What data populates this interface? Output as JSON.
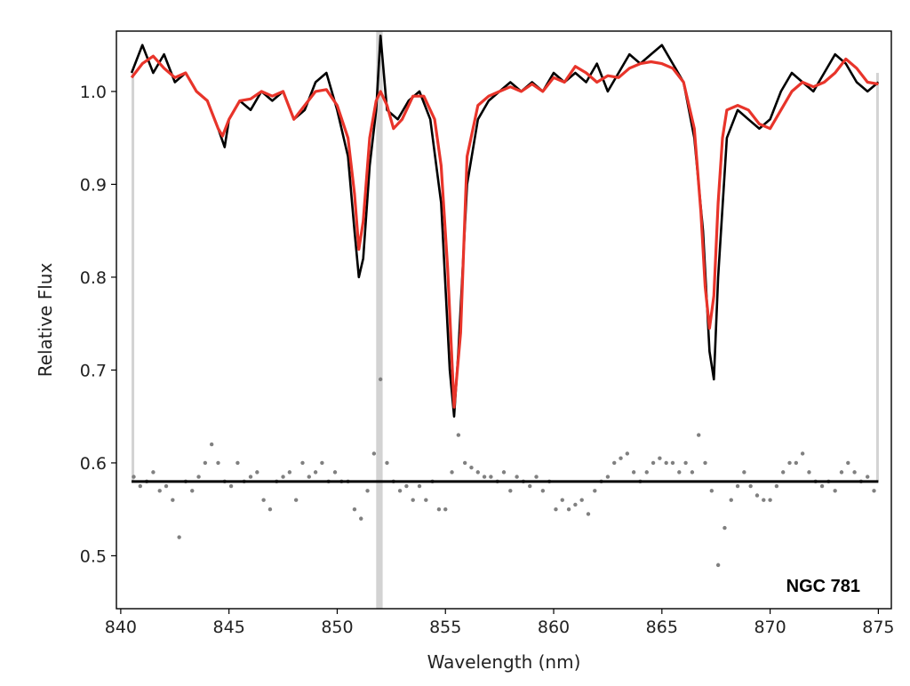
{
  "chart_data": {
    "type": "line",
    "xlabel": "Wavelength (nm)",
    "ylabel": "Relative Flux",
    "xlim": [
      839.8,
      875.6
    ],
    "ylim": [
      0.443,
      1.065
    ],
    "x_ticks": [
      840,
      845,
      850,
      855,
      860,
      865,
      870,
      875
    ],
    "y_ticks": [
      0.5,
      0.6,
      0.7,
      0.8,
      0.9,
      1.0
    ],
    "grid": false,
    "annotation": "NGC 781",
    "masked_regions": [
      {
        "x_start": 840.5,
        "x_end": 840.6,
        "y_start": 0.58,
        "y_end": 1.02,
        "color": "#d3d3d3"
      },
      {
        "x_start": 851.8,
        "x_end": 852.1,
        "y_start": 0.443,
        "y_end": 1.065,
        "color": "#d3d3d3"
      },
      {
        "x_start": 874.9,
        "x_end": 875.0,
        "y_start": 0.58,
        "y_end": 1.02,
        "color": "#d3d3d3"
      }
    ],
    "residual_baseline": {
      "y": 0.58,
      "x_start": 840.5,
      "x_end": 875.0,
      "color": "#000000"
    },
    "series": [
      {
        "role": "observed",
        "color": "#000000",
        "x": [
          840.5,
          841.0,
          841.5,
          842.0,
          842.5,
          843.0,
          843.5,
          844.0,
          844.5,
          844.8,
          845.0,
          845.5,
          846.0,
          846.5,
          847.0,
          847.5,
          848.0,
          848.5,
          849.0,
          849.5,
          850.0,
          850.5,
          850.8,
          851.0,
          851.2,
          851.5,
          851.8,
          852.0,
          852.3,
          852.8,
          853.3,
          853.8,
          854.3,
          854.8,
          855.2,
          855.4,
          855.6,
          856.0,
          856.5,
          857.0,
          857.5,
          858.0,
          858.5,
          859.0,
          859.5,
          860.0,
          860.5,
          861.0,
          861.5,
          862.0,
          862.5,
          863.0,
          863.5,
          864.0,
          864.5,
          865.0,
          865.5,
          866.0,
          866.5,
          866.9,
          867.2,
          867.4,
          867.6,
          868.0,
          868.5,
          869.0,
          869.5,
          870.0,
          870.5,
          871.0,
          871.5,
          872.0,
          872.5,
          873.0,
          873.5,
          874.0,
          874.5,
          875.0
        ],
        "y": [
          1.02,
          1.05,
          1.02,
          1.04,
          1.01,
          1.02,
          1.0,
          0.99,
          0.96,
          0.94,
          0.97,
          0.99,
          0.98,
          1.0,
          0.99,
          1.0,
          0.97,
          0.98,
          1.01,
          1.02,
          0.98,
          0.93,
          0.85,
          0.8,
          0.82,
          0.92,
          0.98,
          1.06,
          0.98,
          0.97,
          0.99,
          1.0,
          0.97,
          0.88,
          0.7,
          0.65,
          0.72,
          0.9,
          0.97,
          0.99,
          1.0,
          1.01,
          1.0,
          1.01,
          1.0,
          1.02,
          1.01,
          1.02,
          1.01,
          1.03,
          1.0,
          1.02,
          1.04,
          1.03,
          1.04,
          1.05,
          1.03,
          1.01,
          0.95,
          0.85,
          0.72,
          0.69,
          0.8,
          0.95,
          0.98,
          0.97,
          0.96,
          0.97,
          1.0,
          1.02,
          1.01,
          1.0,
          1.02,
          1.04,
          1.03,
          1.01,
          1.0,
          1.01
        ]
      },
      {
        "role": "model",
        "color": "#e8342a",
        "x": [
          840.5,
          841.0,
          841.5,
          842.0,
          842.5,
          843.0,
          843.5,
          844.0,
          844.5,
          844.7,
          845.0,
          845.5,
          846.0,
          846.5,
          847.0,
          847.5,
          848.0,
          848.5,
          849.0,
          849.5,
          850.0,
          850.5,
          850.8,
          851.0,
          851.2,
          851.5,
          851.8,
          852.0,
          852.3,
          852.6,
          853.0,
          853.5,
          854.0,
          854.5,
          854.8,
          855.1,
          855.4,
          855.7,
          856.0,
          856.5,
          857.0,
          857.5,
          858.0,
          858.5,
          859.0,
          859.5,
          860.0,
          860.5,
          861.0,
          861.5,
          862.0,
          862.5,
          863.0,
          863.5,
          864.0,
          864.5,
          865.0,
          865.5,
          866.0,
          866.5,
          866.8,
          867.0,
          867.2,
          867.4,
          867.6,
          867.8,
          868.0,
          868.5,
          869.0,
          869.5,
          870.0,
          870.5,
          871.0,
          871.5,
          872.0,
          872.5,
          873.0,
          873.5,
          874.0,
          874.5,
          875.0
        ],
        "y": [
          1.015,
          1.03,
          1.038,
          1.025,
          1.015,
          1.02,
          1.0,
          0.99,
          0.96,
          0.952,
          0.97,
          0.99,
          0.992,
          1.0,
          0.995,
          1.0,
          0.97,
          0.985,
          1.0,
          1.002,
          0.985,
          0.95,
          0.89,
          0.83,
          0.86,
          0.95,
          0.99,
          1.0,
          0.985,
          0.96,
          0.97,
          0.995,
          0.995,
          0.97,
          0.92,
          0.81,
          0.66,
          0.74,
          0.93,
          0.985,
          0.995,
          1.0,
          1.005,
          1.0,
          1.008,
          1.0,
          1.015,
          1.01,
          1.027,
          1.02,
          1.01,
          1.017,
          1.015,
          1.025,
          1.03,
          1.032,
          1.03,
          1.025,
          1.01,
          0.96,
          0.87,
          0.79,
          0.745,
          0.78,
          0.88,
          0.95,
          0.98,
          0.985,
          0.98,
          0.965,
          0.96,
          0.98,
          1.0,
          1.01,
          1.005,
          1.01,
          1.02,
          1.035,
          1.025,
          1.01,
          1.008
        ]
      },
      {
        "role": "residuals",
        "color": "#808080",
        "x": [
          840.6,
          840.9,
          841.2,
          841.5,
          841.8,
          842.1,
          842.4,
          842.7,
          843.0,
          843.3,
          843.6,
          843.9,
          844.2,
          844.5,
          844.8,
          845.1,
          845.4,
          845.7,
          846.0,
          846.3,
          846.6,
          846.9,
          847.2,
          847.5,
          847.8,
          848.1,
          848.4,
          848.7,
          849.0,
          849.3,
          849.6,
          849.9,
          850.2,
          850.5,
          850.8,
          851.1,
          851.4,
          851.7,
          852.0,
          852.3,
          852.6,
          852.9,
          853.2,
          853.5,
          853.8,
          854.1,
          854.4,
          854.7,
          855.0,
          855.3,
          855.6,
          855.9,
          856.2,
          856.5,
          856.8,
          857.1,
          857.4,
          857.7,
          858.0,
          858.3,
          858.6,
          858.9,
          859.2,
          859.5,
          859.8,
          860.1,
          860.4,
          860.7,
          861.0,
          861.3,
          861.6,
          861.9,
          862.2,
          862.5,
          862.8,
          863.1,
          863.4,
          863.7,
          864.0,
          864.3,
          864.6,
          864.9,
          865.2,
          865.5,
          865.8,
          866.1,
          866.4,
          866.7,
          867.0,
          867.3,
          867.6,
          867.9,
          868.2,
          868.5,
          868.8,
          869.1,
          869.4,
          869.7,
          870.0,
          870.3,
          870.6,
          870.9,
          871.2,
          871.5,
          871.8,
          872.1,
          872.4,
          872.7,
          873.0,
          873.3,
          873.6,
          873.9,
          874.2,
          874.5,
          874.8
        ],
        "y": [
          0.585,
          0.575,
          0.58,
          0.59,
          0.57,
          0.575,
          0.56,
          0.52,
          0.58,
          0.57,
          0.585,
          0.6,
          0.62,
          0.6,
          0.58,
          0.575,
          0.6,
          0.58,
          0.585,
          0.59,
          0.56,
          0.55,
          0.58,
          0.585,
          0.59,
          0.56,
          0.6,
          0.585,
          0.59,
          0.6,
          0.58,
          0.59,
          0.58,
          0.58,
          0.55,
          0.54,
          0.57,
          0.61,
          0.69,
          0.6,
          0.58,
          0.57,
          0.575,
          0.56,
          0.575,
          0.56,
          0.58,
          0.55,
          0.55,
          0.59,
          0.63,
          0.6,
          0.595,
          0.59,
          0.585,
          0.585,
          0.58,
          0.59,
          0.57,
          0.585,
          0.58,
          0.575,
          0.585,
          0.57,
          0.58,
          0.55,
          0.56,
          0.55,
          0.555,
          0.56,
          0.545,
          0.57,
          0.58,
          0.585,
          0.6,
          0.605,
          0.61,
          0.59,
          0.58,
          0.59,
          0.6,
          0.605,
          0.6,
          0.6,
          0.59,
          0.6,
          0.59,
          0.63,
          0.6,
          0.57,
          0.49,
          0.53,
          0.56,
          0.575,
          0.59,
          0.575,
          0.565,
          0.56,
          0.56,
          0.575,
          0.59,
          0.6,
          0.6,
          0.61,
          0.59,
          0.58,
          0.575,
          0.58,
          0.57,
          0.59,
          0.6,
          0.59,
          0.58,
          0.585,
          0.57
        ]
      }
    ]
  }
}
